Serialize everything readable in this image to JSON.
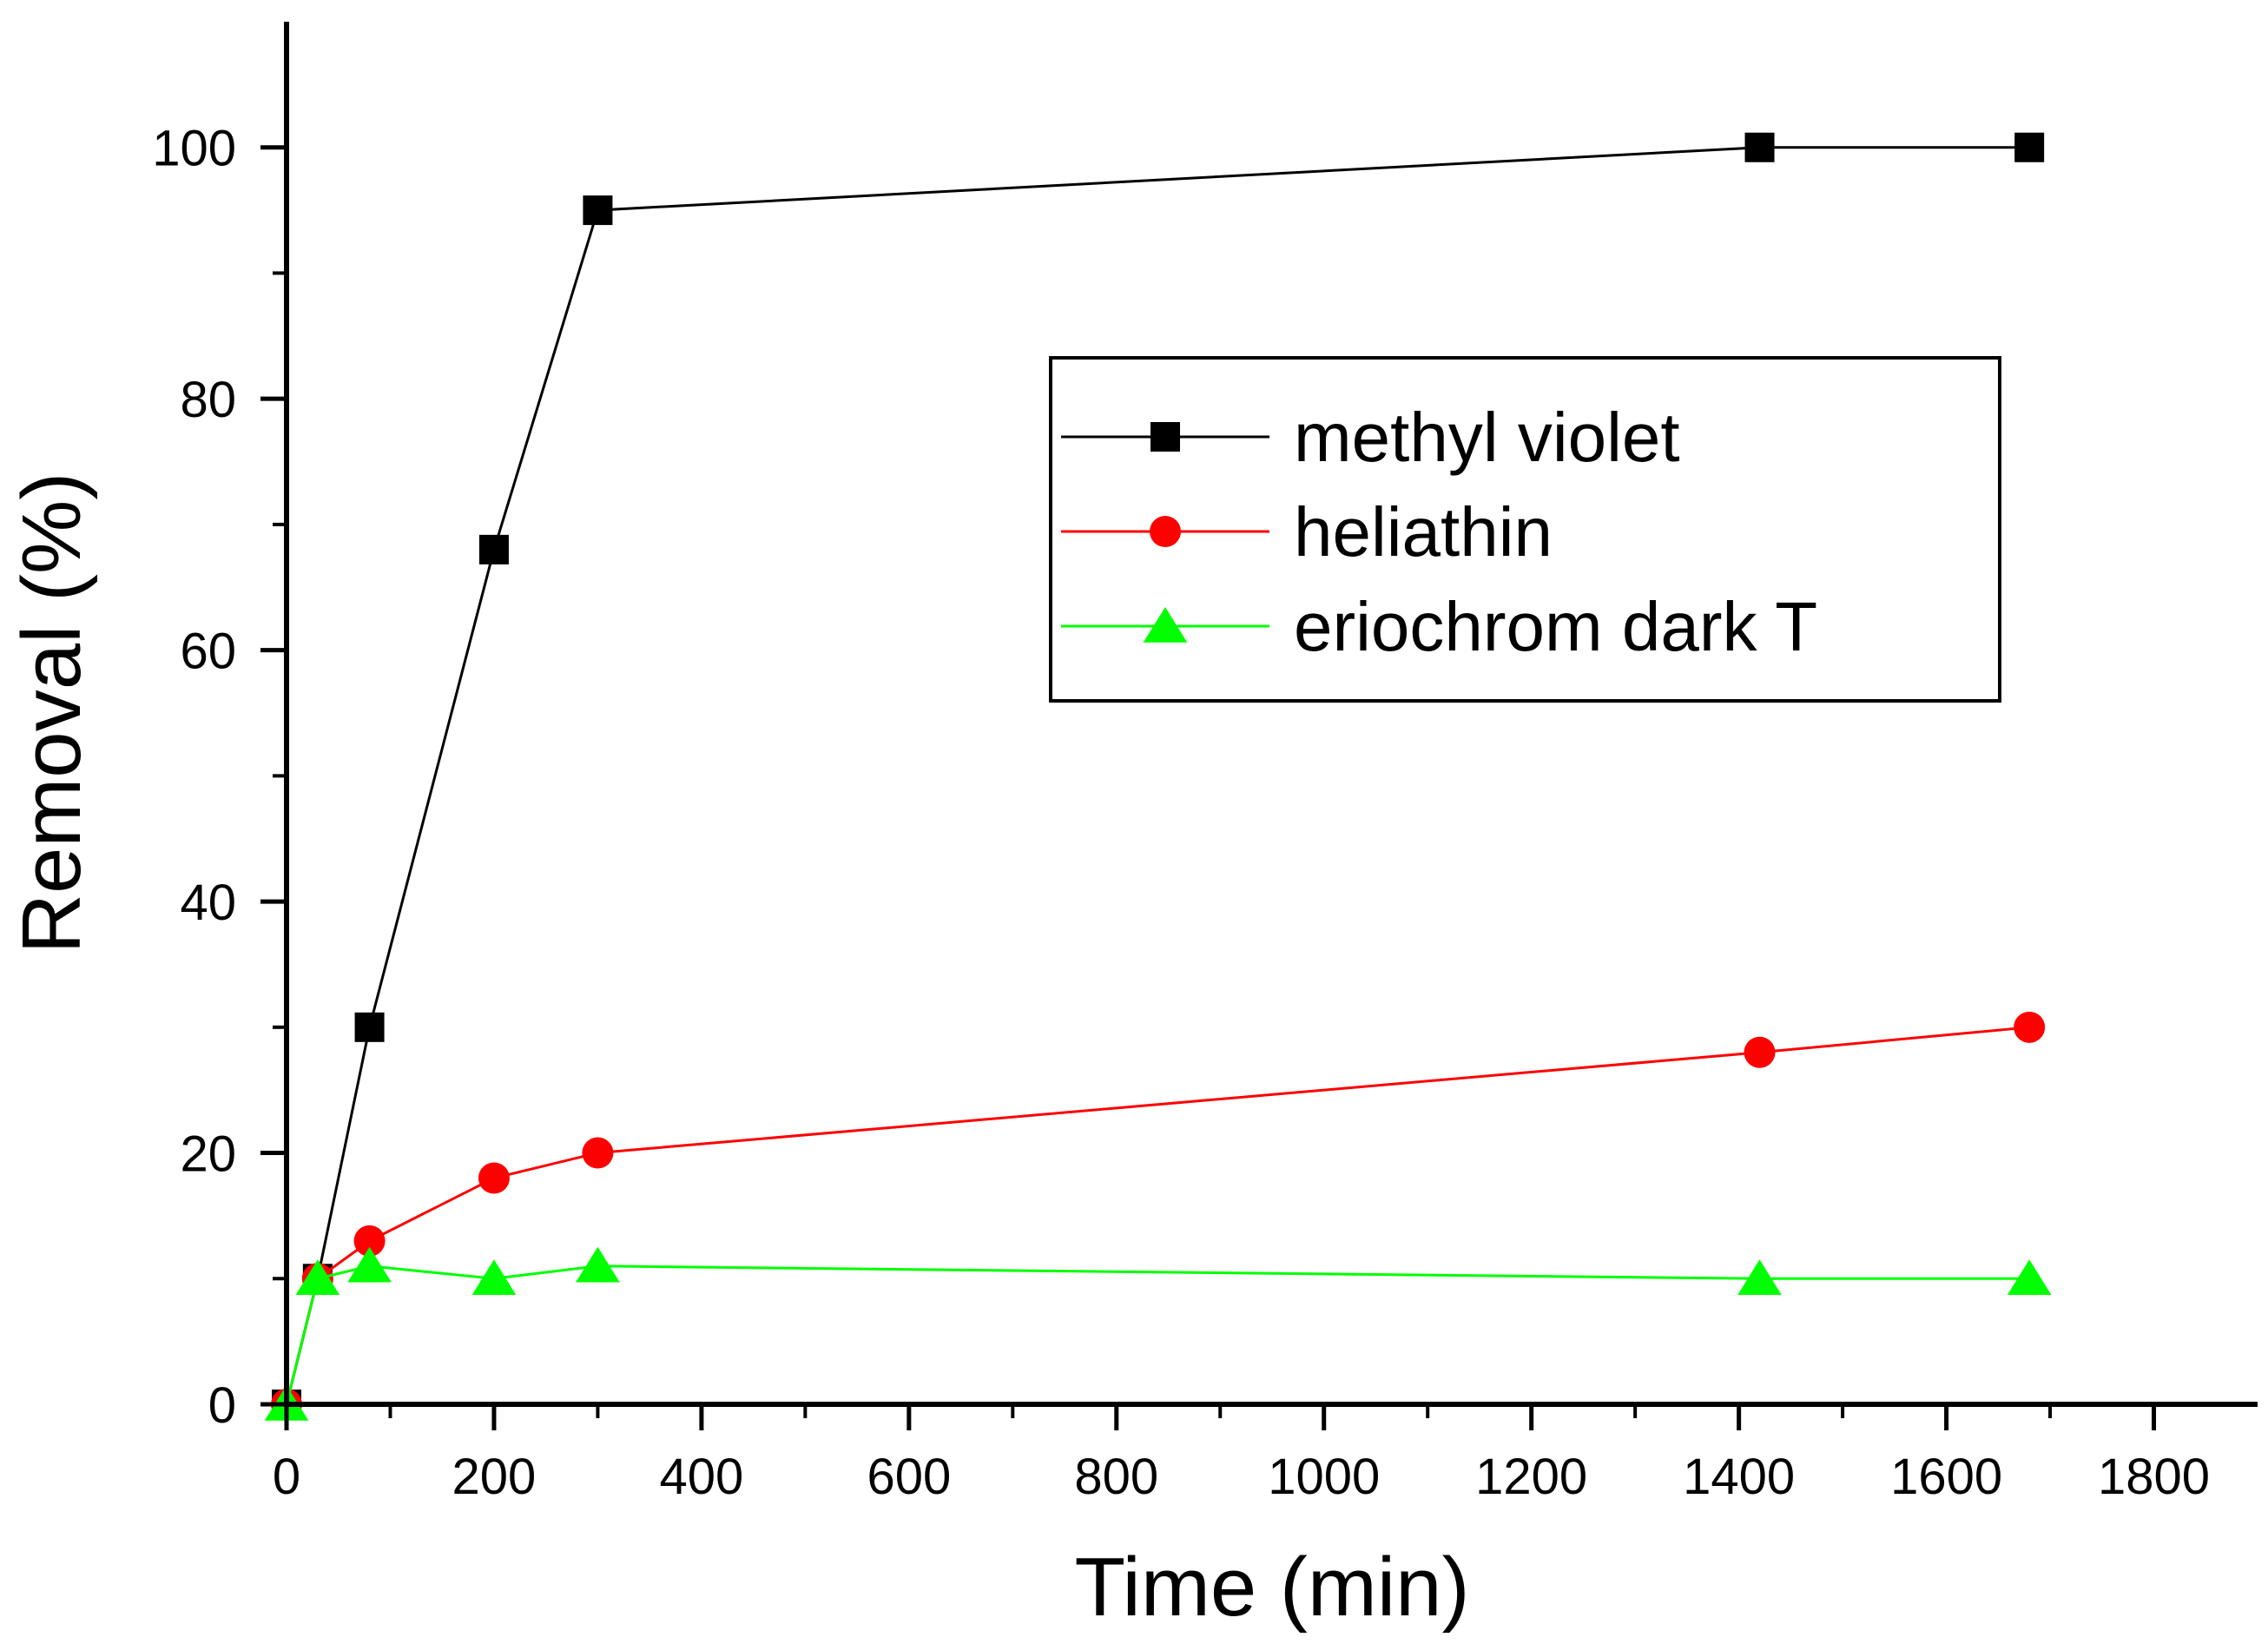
{
  "chart_data": {
    "type": "line",
    "title": "",
    "xlabel": "Time (min)",
    "ylabel": "Removal (%)",
    "xlim": [
      0,
      1900
    ],
    "ylim": [
      0,
      110
    ],
    "xticks": [
      0,
      200,
      400,
      600,
      800,
      1000,
      1200,
      1400,
      1600,
      1800
    ],
    "yticks": [
      0,
      20,
      40,
      60,
      80,
      100
    ],
    "x_tick_labels": [
      "0",
      "200",
      "400",
      "600",
      "800",
      "1000",
      "1200",
      "1400",
      "1600",
      "1800"
    ],
    "y_tick_labels": [
      "0",
      "20",
      "40",
      "60",
      "80",
      "100"
    ],
    "grid": false,
    "legend_position": "upper-right",
    "series": [
      {
        "name": "methyl violet",
        "color": "#000000",
        "marker": "square",
        "x": [
          0,
          30,
          80,
          200,
          300,
          1420,
          1680
        ],
        "y": [
          0,
          10,
          30,
          68,
          95,
          100,
          100
        ]
      },
      {
        "name": "heliathin",
        "color": "#ff0000",
        "marker": "circle",
        "x": [
          0,
          30,
          80,
          200,
          300,
          1420,
          1680
        ],
        "y": [
          0,
          10,
          13,
          18,
          20,
          28,
          30
        ]
      },
      {
        "name": "eriochrom dark T",
        "color": "#00ff00",
        "marker": "triangle",
        "x": [
          0,
          30,
          80,
          200,
          300,
          1420,
          1680
        ],
        "y": [
          0,
          10,
          11,
          10,
          11,
          10,
          10
        ]
      }
    ]
  }
}
